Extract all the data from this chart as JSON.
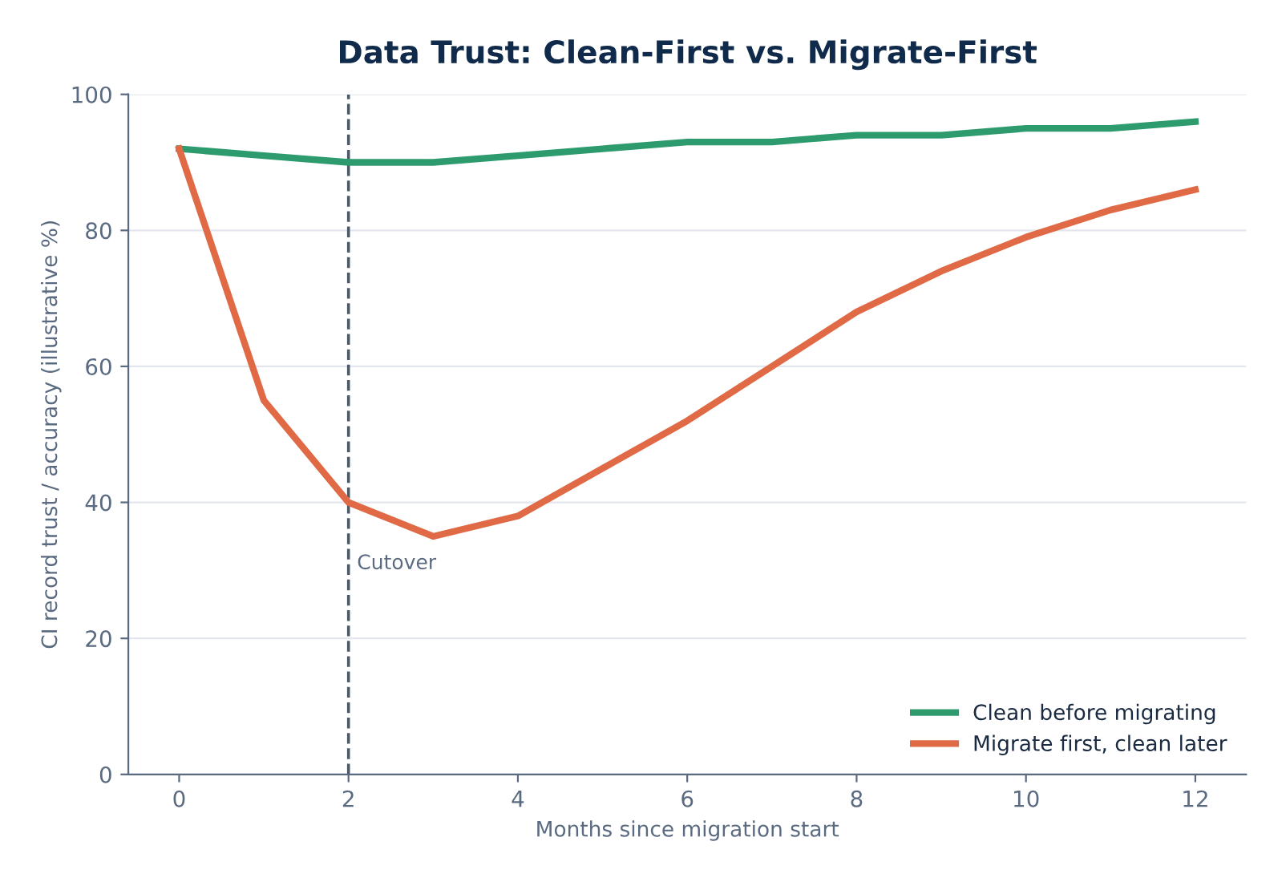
{
  "chart_data": {
    "type": "line",
    "title": "Data Trust: Clean-First vs. Migrate-First",
    "xlabel": "Months since migration start",
    "ylabel": "CI record trust / accuracy (illustrative %)",
    "x": [
      0,
      1,
      2,
      3,
      4,
      5,
      6,
      7,
      8,
      9,
      10,
      11,
      12
    ],
    "series": [
      {
        "name": "Clean before migrating",
        "color": "#2e9b6e",
        "values": [
          92,
          91,
          90,
          90,
          91,
          92,
          93,
          93,
          94,
          94,
          95,
          95,
          96
        ]
      },
      {
        "name": "Migrate first, clean later",
        "color": "#e06a45",
        "values": [
          92,
          55,
          40,
          35,
          38,
          45,
          52,
          60,
          68,
          74,
          79,
          83,
          86
        ]
      }
    ],
    "xlim": [
      -0.6,
      12.6
    ],
    "xticks": [
      0,
      2,
      4,
      6,
      8,
      10,
      12
    ],
    "ylim": [
      0,
      100
    ],
    "yticks": [
      0,
      20,
      40,
      60,
      80,
      100
    ],
    "ref_lines": [
      {
        "axis": "x",
        "value": 2,
        "label": "Cutover",
        "color": "#4a5a6e",
        "line_style": "dashed"
      }
    ],
    "grid": "y",
    "legend": "bottom right",
    "marker": "none",
    "line_style": "solid"
  }
}
